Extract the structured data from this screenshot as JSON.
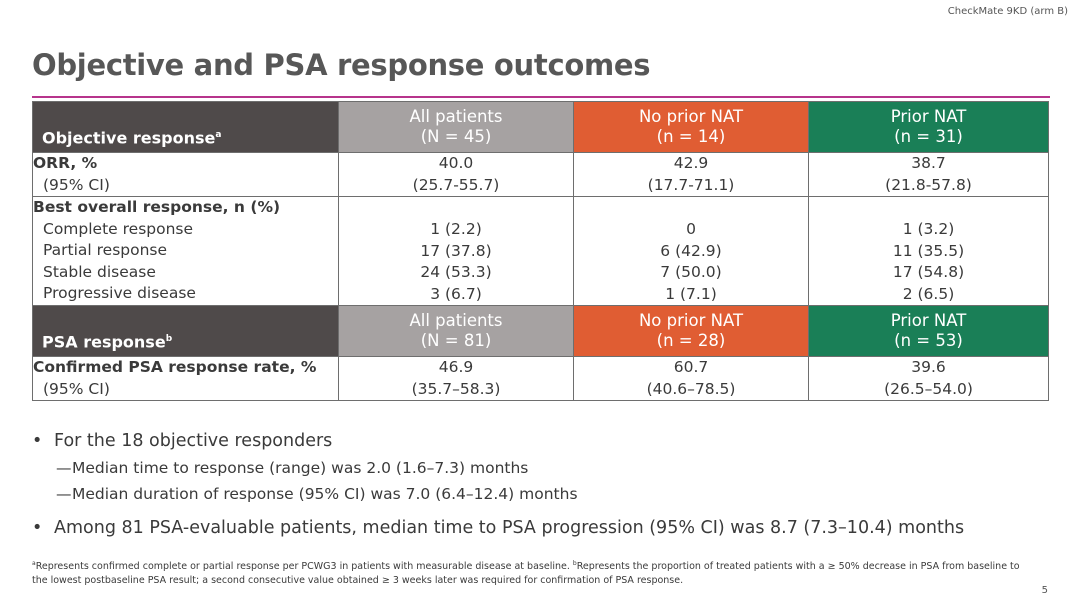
{
  "corner_label": "CheckMate 9KD (arm B)",
  "title": "Objective and PSA response outcomes",
  "table1": {
    "header_label": "Objective response",
    "header_sup": "a",
    "columns": [
      {
        "line1": "All patients",
        "line2": "(N = 45)"
      },
      {
        "line1": "No prior NAT",
        "line2": "(n = 14)"
      },
      {
        "line1": "Prior NAT",
        "line2": "(n = 31)"
      }
    ],
    "orr": {
      "label": "ORR, %",
      "sub": "(95% CI)",
      "values": [
        {
          "v": "40.0",
          "ci": "(25.7-55.7)"
        },
        {
          "v": "42.9",
          "ci": "(17.7-71.1)"
        },
        {
          "v": "38.7",
          "ci": "(21.8-57.8)"
        }
      ]
    },
    "bor": {
      "label": "Best overall response, n (%)",
      "rows": [
        {
          "label": "Complete response",
          "values": [
            "1 (2.2)",
            "0",
            "1 (3.2)"
          ]
        },
        {
          "label": "Partial response",
          "values": [
            "17 (37.8)",
            "6 (42.9)",
            "11 (35.5)"
          ]
        },
        {
          "label": "Stable disease",
          "values": [
            "24 (53.3)",
            "7 (50.0)",
            "17 (54.8)"
          ]
        },
        {
          "label": "Progressive disease",
          "values": [
            "3 (6.7)",
            "1 (7.1)",
            "2 (6.5)"
          ]
        }
      ]
    }
  },
  "table2": {
    "header_label": "PSA response",
    "header_sup": "b",
    "columns": [
      {
        "line1": "All patients",
        "line2": "(N = 81)"
      },
      {
        "line1": "No prior NAT",
        "line2": "(n = 28)"
      },
      {
        "line1": "Prior NAT",
        "line2": "(n = 53)"
      }
    ],
    "psa": {
      "label": "Confirmed PSA response rate, %",
      "sub": "(95% CI)",
      "values": [
        {
          "v": "46.9",
          "ci": "(35.7–58.3)"
        },
        {
          "v": "60.7",
          "ci": "(40.6–78.5)"
        },
        {
          "v": "39.6",
          "ci": "(26.5–54.0)"
        }
      ]
    }
  },
  "bullets": {
    "b1": "For the 18 objective responders",
    "sub1": "Median time to response (range) was 2.0 (1.6–7.3) months",
    "sub2": "Median duration of response (95% CI) was 7.0 (6.4–12.4) months",
    "b2": "Among 81 PSA-evaluable patients, median time to PSA progression (95% CI) was 8.7 (7.3–10.4) months",
    "bullet_char": "•",
    "dash_char": "—"
  },
  "footnote": {
    "sup_a": "a",
    "text_a": "Represents confirmed complete or partial response per PCWG3 in patients with measurable disease at baseline. ",
    "sup_b": "b",
    "text_b": "Represents the proportion of treated patients with a ≥ 50% decrease in PSA from baseline to the lowest postbaseline PSA result; a second consecutive value obtained ≥ 3 weeks later was required for confirmation of PSA response."
  },
  "page_number": "5"
}
